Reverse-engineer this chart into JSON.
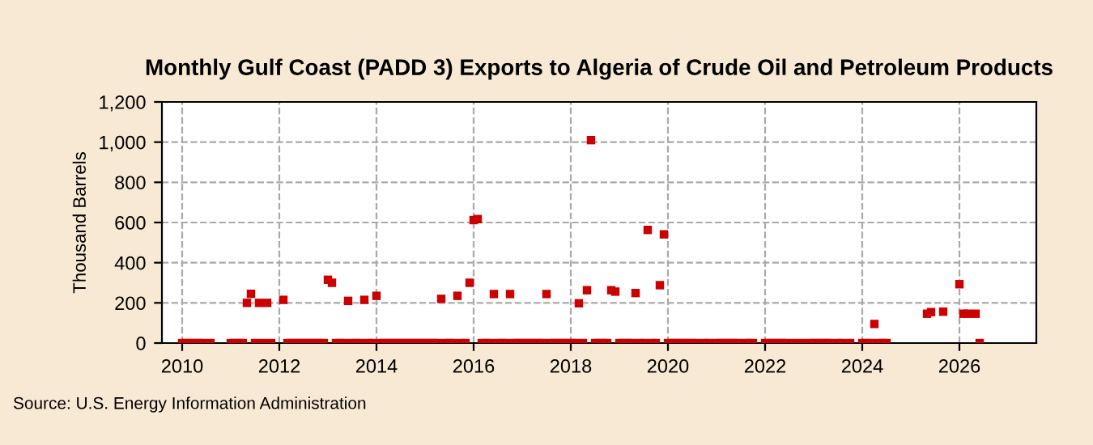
{
  "chart_data": {
    "type": "scatter",
    "title": "Monthly Gulf Coast (PADD 3) Exports to Algeria of Crude Oil and Petroleum Products",
    "ylabel": "Thousand Barrels",
    "annotations": [
      "Source: U.S. Energy Information Administration"
    ],
    "xlim": [
      "2009-08",
      "2027-08"
    ],
    "xticks": [
      "2010",
      "2012",
      "2014",
      "2016",
      "2018",
      "2020",
      "2022",
      "2024",
      "2026"
    ],
    "ylim": [
      0,
      1200
    ],
    "yticks": [
      {
        "value": 0,
        "label": "0"
      },
      {
        "value": 200,
        "label": "200"
      },
      {
        "value": 400,
        "label": "400"
      },
      {
        "value": 600,
        "label": "600"
      },
      {
        "value": 800,
        "label": "800"
      },
      {
        "value": 1000,
        "label": "1,000"
      },
      {
        "value": 1200,
        "label": "1,200"
      }
    ],
    "grid": true,
    "marker": "square",
    "legend": false,
    "series": [
      {
        "color": "#cc0000",
        "x": [
          "2010-01",
          "2010-02",
          "2010-03",
          "2010-04",
          "2010-05",
          "2010-06",
          "2010-08",
          "2011-01",
          "2011-02",
          "2011-03",
          "2011-04",
          "2011-05",
          "2011-06",
          "2011-07",
          "2011-08",
          "2011-09",
          "2011-10",
          "2011-11",
          "2012-02",
          "2012-03",
          "2012-04",
          "2012-05",
          "2012-06",
          "2012-07",
          "2012-08",
          "2012-09",
          "2012-10",
          "2012-11",
          "2012-12",
          "2013-01",
          "2013-02",
          "2013-03",
          "2013-04",
          "2013-05",
          "2013-06",
          "2013-07",
          "2013-08",
          "2013-09",
          "2013-10",
          "2013-11",
          "2013-12",
          "2014-01",
          "2014-02",
          "2014-03",
          "2014-04",
          "2014-05",
          "2014-06",
          "2014-07",
          "2014-08",
          "2014-09",
          "2014-10",
          "2014-11",
          "2014-12",
          "2015-01",
          "2015-02",
          "2015-03",
          "2015-04",
          "2015-05",
          "2015-06",
          "2015-07",
          "2015-08",
          "2015-09",
          "2015-10",
          "2015-11",
          "2015-12",
          "2016-01",
          "2016-02",
          "2016-03",
          "2016-04",
          "2016-05",
          "2016-06",
          "2016-07",
          "2016-08",
          "2016-09",
          "2016-10",
          "2016-11",
          "2016-12",
          "2017-01",
          "2017-02",
          "2017-03",
          "2017-04",
          "2017-05",
          "2017-06",
          "2017-07",
          "2017-08",
          "2017-09",
          "2017-10",
          "2017-11",
          "2017-12",
          "2018-01",
          "2018-02",
          "2018-03",
          "2018-04",
          "2018-05",
          "2018-06",
          "2018-07",
          "2018-08",
          "2018-09",
          "2018-10",
          "2018-11",
          "2018-12",
          "2019-01",
          "2019-02",
          "2019-03",
          "2019-04",
          "2019-05",
          "2019-06",
          "2019-07",
          "2019-08",
          "2019-09",
          "2019-10",
          "2019-11",
          "2019-12",
          "2020-01",
          "2020-02",
          "2020-03",
          "2020-04",
          "2020-05",
          "2020-06",
          "2020-07",
          "2020-08",
          "2020-10",
          "2020-11",
          "2021-01",
          "2021-02",
          "2021-03",
          "2021-04",
          "2021-05",
          "2021-06",
          "2021-08",
          "2021-09",
          "2021-10",
          "2022-01",
          "2022-02",
          "2022-03",
          "2022-04",
          "2022-05",
          "2022-06",
          "2022-08",
          "2022-10",
          "2022-12",
          "2023-01",
          "2023-02",
          "2023-03",
          "2023-04",
          "2023-05",
          "2023-07",
          "2023-08",
          "2023-10",
          "2024-01",
          "2024-02",
          "2024-03",
          "2024-04",
          "2024-05",
          "2024-06",
          "2024-07",
          "2025-05",
          "2025-06",
          "2025-09",
          "2026-01",
          "2026-02",
          "2026-03",
          "2026-05",
          "2026-06"
        ],
        "values": [
          0,
          0,
          0,
          0,
          0,
          0,
          0,
          0,
          0,
          0,
          0,
          200,
          245,
          0,
          200,
          0,
          200,
          0,
          215,
          0,
          0,
          0,
          0,
          0,
          0,
          0,
          0,
          0,
          0,
          315,
          300,
          0,
          0,
          0,
          210,
          0,
          0,
          0,
          215,
          0,
          0,
          235,
          0,
          0,
          0,
          0,
          0,
          0,
          0,
          0,
          0,
          0,
          0,
          0,
          0,
          0,
          0,
          220,
          0,
          0,
          0,
          235,
          0,
          0,
          300,
          612,
          617,
          0,
          0,
          0,
          244,
          0,
          0,
          0,
          244,
          0,
          0,
          0,
          0,
          0,
          0,
          0,
          0,
          244,
          0,
          0,
          0,
          0,
          0,
          0,
          0,
          198,
          0,
          263,
          1010,
          0,
          0,
          0,
          0,
          263,
          256,
          0,
          0,
          0,
          0,
          249,
          0,
          0,
          563,
          0,
          0,
          288,
          541,
          0,
          0,
          0,
          0,
          0,
          0,
          0,
          0,
          0,
          0,
          0,
          0,
          0,
          0,
          0,
          0,
          0,
          0,
          0,
          0,
          0,
          0,
          0,
          0,
          0,
          0,
          0,
          0,
          0,
          0,
          0,
          0,
          0,
          0,
          0,
          0,
          0,
          0,
          0,
          95,
          0,
          0,
          0,
          146,
          154,
          156,
          293,
          146,
          146,
          146,
          0
        ]
      }
    ]
  }
}
